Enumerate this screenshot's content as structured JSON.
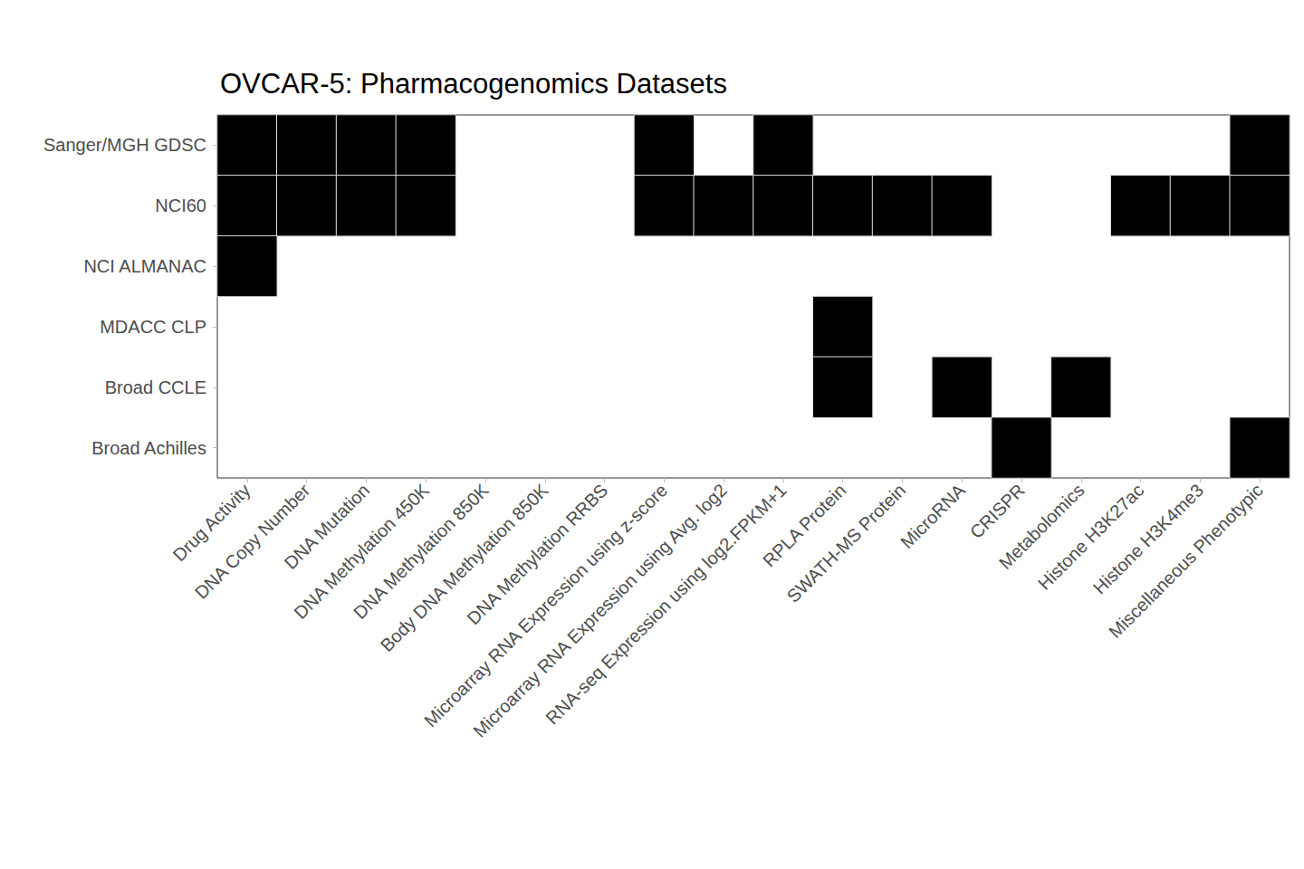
{
  "chart_data": {
    "type": "heatmap",
    "title": "OVCAR-5: Pharmacogenomics Datasets",
    "categories": [
      "Drug Activity",
      "DNA Copy Number",
      "DNA Mutation",
      "DNA Methylation 450K",
      "DNA Methylation 850K",
      "Body DNA Methylation 850K",
      "DNA Methylation RRBS",
      "Microarray RNA Expression using z-score",
      "Microarray RNA Expression using Avg. log2",
      "RNA-seq Expression using log2.FPKM+1",
      "RPLA Protein",
      "SWATH-MS Protein",
      "MicroRNA",
      "CRISPR",
      "Metabolomics",
      "Histone H3K27ac",
      "Histone H3K4me3",
      "Miscellaneous Phenotypic"
    ],
    "rows": [
      "Sanger/MGH GDSC",
      "NCI60",
      "NCI ALMANAC",
      "MDACC CLP",
      "Broad CCLE",
      "Broad Achilles"
    ],
    "cells": [
      [
        1,
        1,
        1,
        1,
        0,
        0,
        0,
        1,
        0,
        1,
        0,
        0,
        0,
        0,
        0,
        0,
        0,
        1
      ],
      [
        1,
        1,
        1,
        1,
        0,
        0,
        0,
        1,
        1,
        1,
        1,
        1,
        1,
        0,
        0,
        1,
        1,
        1
      ],
      [
        1,
        0,
        0,
        0,
        0,
        0,
        0,
        0,
        0,
        0,
        0,
        0,
        0,
        0,
        0,
        0,
        0,
        0
      ],
      [
        0,
        0,
        0,
        0,
        0,
        0,
        0,
        0,
        0,
        0,
        1,
        0,
        0,
        0,
        0,
        0,
        0,
        0
      ],
      [
        0,
        0,
        0,
        0,
        0,
        0,
        0,
        0,
        0,
        0,
        1,
        0,
        1,
        0,
        1,
        0,
        0,
        0
      ],
      [
        0,
        0,
        0,
        0,
        0,
        0,
        0,
        0,
        0,
        0,
        0,
        0,
        0,
        1,
        0,
        0,
        0,
        1
      ]
    ],
    "color": "#000000"
  }
}
